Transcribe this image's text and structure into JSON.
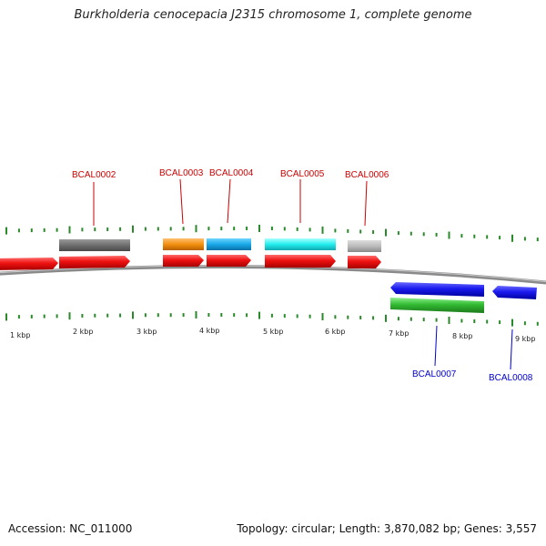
{
  "title": "Burkholderia cenocepacia J2315 chromosome 1, complete genome",
  "footer": {
    "accession": "Accession: NC_011000",
    "summary": "Topology: circular; Length: 3,870,082 bp; Genes: 3,557"
  },
  "colors": {
    "backbone": "#8a8a8a",
    "tick": "#2a8a2a",
    "forward_label": "#cc0000",
    "reverse_label": "#0000cc",
    "cds_forward": "#ee1111",
    "cds_reverse": "#1a1aee",
    "rna_reverse": "#33bb33",
    "gene_colors": [
      "#777777",
      "#f39010",
      "#18a8e8",
      "#22eeee",
      "#bbbbbb"
    ]
  },
  "scale_labels": [
    "1 kbp",
    "2 kbp",
    "3 kbp",
    "4 kbp",
    "5 kbp",
    "6 kbp",
    "7 kbp",
    "8 kbp",
    "9 kbp"
  ],
  "forward_labels": [
    "BCAL0002",
    "BCAL0003",
    "BCAL0004",
    "BCAL0005",
    "BCAL0006"
  ],
  "reverse_labels": [
    "BCAL0007",
    "BCAL0008"
  ]
}
